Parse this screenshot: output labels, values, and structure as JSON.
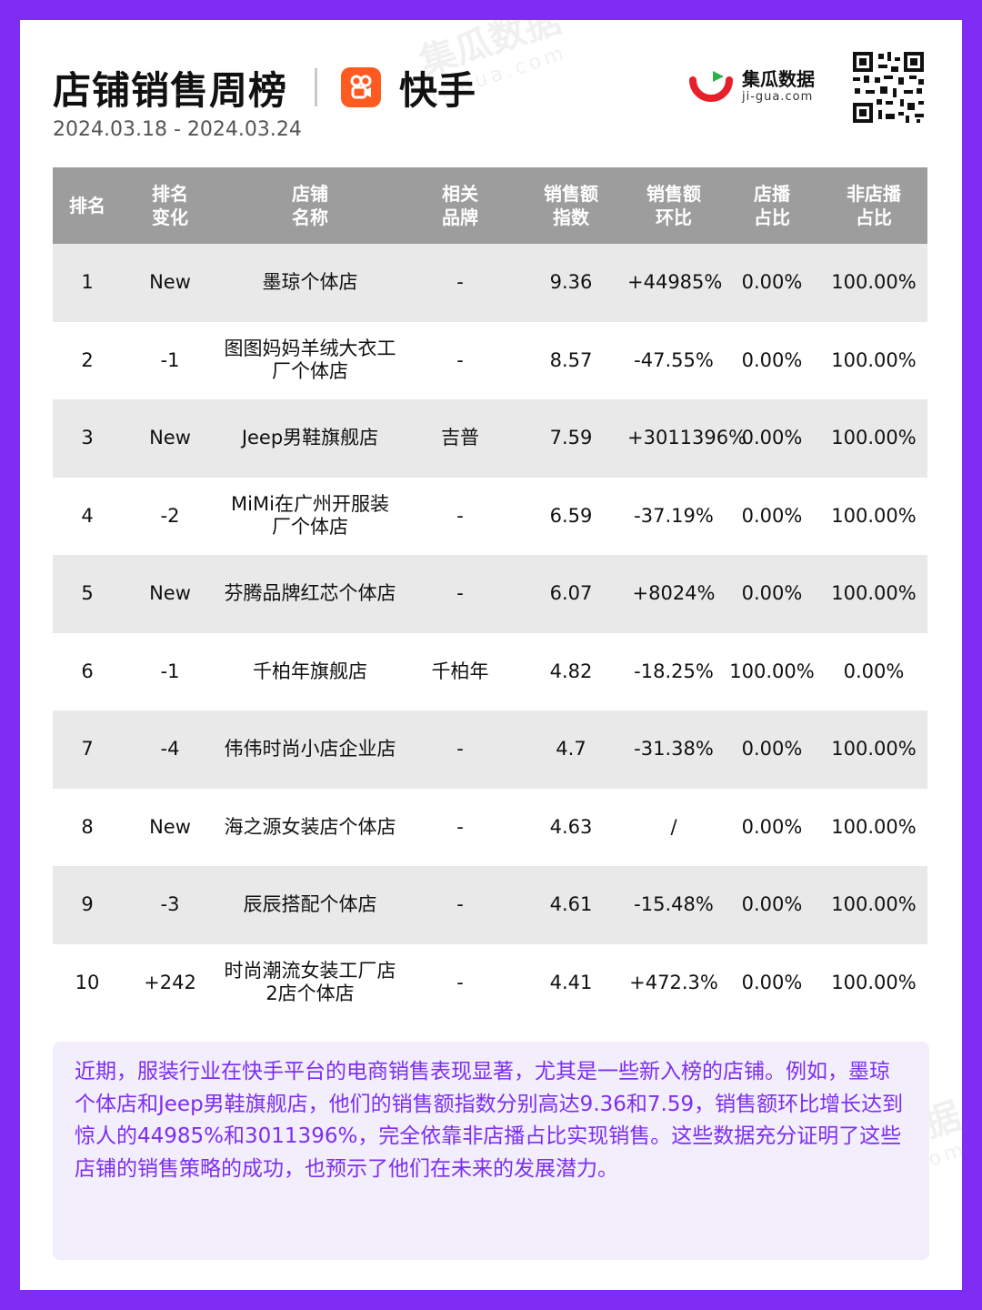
{
  "header": {
    "title": "店铺销售周榜",
    "platform": "快手",
    "date_range": "2024.03.18 - 2024.03.24",
    "brand_name": "集瓜数据",
    "brand_domain": "ji-gua.com"
  },
  "colors": {
    "frame": "#7f2cf5",
    "header_bg": "#9d9d9d",
    "new": "#e0701d",
    "down": "#17a34a",
    "up": "#e8345a",
    "summary_text": "#7d2ff0"
  },
  "table": {
    "headers": [
      [
        "排名"
      ],
      [
        "排名",
        "变化"
      ],
      [
        "店铺",
        "名称"
      ],
      [
        "相关",
        "品牌"
      ],
      [
        "销售额",
        "指数"
      ],
      [
        "销售额",
        "环比"
      ],
      [
        "店播",
        "占比"
      ],
      [
        "非店播",
        "占比"
      ]
    ],
    "rows": [
      {
        "rank": "1",
        "change": "New",
        "change_type": "new",
        "store": "墨琼个体店",
        "brand": "-",
        "index": "9.36",
        "mom": "+44985%",
        "mom_type": "up",
        "live": "0.00%",
        "nonlive": "100.00%"
      },
      {
        "rank": "2",
        "change": "-1",
        "change_type": "down",
        "store": "图图妈妈羊绒大衣工厂个体店",
        "brand": "-",
        "index": "8.57",
        "mom": "-47.55%",
        "mom_type": "down",
        "live": "0.00%",
        "nonlive": "100.00%"
      },
      {
        "rank": "3",
        "change": "New",
        "change_type": "new",
        "store": "Jeep男鞋旗舰店",
        "brand": "吉普",
        "index": "7.59",
        "mom": "+3011396%",
        "mom_type": "up",
        "live": "0.00%",
        "nonlive": "100.00%"
      },
      {
        "rank": "4",
        "change": "-2",
        "change_type": "down",
        "store": "MiMi在广州开服装厂个体店",
        "brand": "-",
        "index": "6.59",
        "mom": "-37.19%",
        "mom_type": "down",
        "live": "0.00%",
        "nonlive": "100.00%"
      },
      {
        "rank": "5",
        "change": "New",
        "change_type": "new",
        "store": "芬腾品牌红芯个体店",
        "brand": "-",
        "index": "6.07",
        "mom": "+8024%",
        "mom_type": "up",
        "live": "0.00%",
        "nonlive": "100.00%"
      },
      {
        "rank": "6",
        "change": "-1",
        "change_type": "down",
        "store": "千柏年旗舰店",
        "brand": "千柏年",
        "index": "4.82",
        "mom": "-18.25%",
        "mom_type": "down",
        "live": "100.00%",
        "nonlive": "0.00%"
      },
      {
        "rank": "7",
        "change": "-4",
        "change_type": "down",
        "store": "伟伟时尚小店企业店",
        "brand": "-",
        "index": "4.7",
        "mom": "-31.38%",
        "mom_type": "down",
        "live": "0.00%",
        "nonlive": "100.00%"
      },
      {
        "rank": "8",
        "change": "New",
        "change_type": "new",
        "store": "海之源女装店个体店",
        "brand": "-",
        "index": "4.63",
        "mom": "/",
        "mom_type": "neutral",
        "live": "0.00%",
        "nonlive": "100.00%"
      },
      {
        "rank": "9",
        "change": "-3",
        "change_type": "down",
        "store": "辰辰搭配个体店",
        "brand": "-",
        "index": "4.61",
        "mom": "-15.48%",
        "mom_type": "down",
        "live": "0.00%",
        "nonlive": "100.00%"
      },
      {
        "rank": "10",
        "change": "+242",
        "change_type": "up",
        "store": "时尚潮流女装工厂店2店个体店",
        "brand": "-",
        "index": "4.41",
        "mom": "+472.3%",
        "mom_type": "up",
        "live": "0.00%",
        "nonlive": "100.00%"
      }
    ]
  },
  "summary": "近期，服装行业在快手平台的电商销售表现显著，尤其是一些新入榜的店铺。例如，墨琼个体店和Jeep男鞋旗舰店，他们的销售额指数分别高达9.36和7.59，销售额环比增长达到惊人的44985%和3011396%，完全依靠非店播占比实现销售。这些数据充分证明了这些店铺的销售策略的成功，也预示了他们在未来的发展潜力。"
}
